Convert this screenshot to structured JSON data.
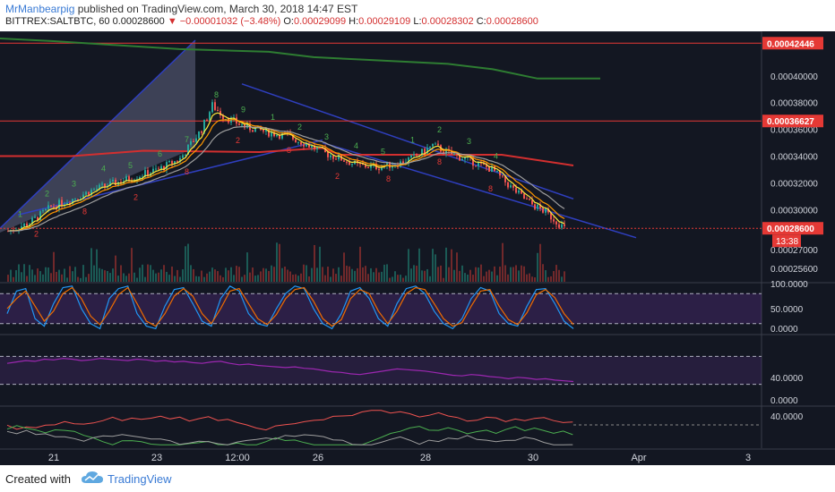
{
  "header": {
    "author": "MrManbearpig",
    "published_text": " published on TradingView.com, March 30, 2018 14:47 EST",
    "symbol": "BITTREX:SALTBTC, 60",
    "last": "0.00028600",
    "change": "▼ −0.00001032 (−3.48%)",
    "o_label": "O:",
    "o": "0.00029099",
    "h_label": "H:",
    "h": "0.00029109",
    "l_label": "L:",
    "l": "0.00028302",
    "c_label": "C:",
    "c": "0.00028600"
  },
  "footer": {
    "created": "Created with",
    "brand": "TradingView"
  },
  "colors": {
    "background": "#131722",
    "up": "#26a69a",
    "down": "#ef5350",
    "ema_fast": "#ffeb3b",
    "ema_mid": "#ff9800",
    "ema_slow": "#9e9e9e",
    "resistance": "#e53935",
    "green_line": "#2e7d32",
    "trend": "#2f3fbf",
    "rsi": "#9c27b0",
    "stoch_k": "#2196f3",
    "stoch_d": "#ef6c00"
  },
  "chart_data": [
    {
      "type": "line",
      "name": "price",
      "x_ticks": [
        "21",
        "23",
        "12:00",
        "26",
        "28",
        "30",
        "Apr",
        "3"
      ],
      "y_ticks": [
        "0.00040000",
        "0.00038000",
        "0.00036000",
        "0.00034000",
        "0.00032000",
        "0.00030000",
        "0.00027000",
        "0.00025600"
      ],
      "y_range": [
        0.000246,
        0.00043
      ],
      "price_labels": [
        {
          "text": "0.00042446",
          "value": 0.00042446
        },
        {
          "text": "0.00036627",
          "value": 0.00036627
        },
        {
          "text": "0.00028600",
          "value": 0.000286
        }
      ],
      "countdown": "13:38",
      "close_path": [
        [
          0,
          0.000284
        ],
        [
          8,
          0.00029
        ],
        [
          16,
          0.000302
        ],
        [
          24,
          0.000308
        ],
        [
          32,
          0.000315
        ],
        [
          40,
          0.00032
        ],
        [
          48,
          0.000325
        ],
        [
          56,
          0.00033
        ],
        [
          64,
          0.000338
        ],
        [
          72,
          0.00036
        ],
        [
          76,
          0.000378
        ],
        [
          80,
          0.00037
        ],
        [
          88,
          0.000362
        ],
        [
          96,
          0.000358
        ],
        [
          104,
          0.000355
        ],
        [
          112,
          0.000348
        ],
        [
          118,
          0.000342
        ],
        [
          124,
          0.000338
        ],
        [
          130,
          0.000333
        ],
        [
          138,
          0.000332
        ],
        [
          146,
          0.000335
        ],
        [
          152,
          0.00034
        ],
        [
          158,
          0.000348
        ],
        [
          164,
          0.000342
        ],
        [
          170,
          0.000338
        ],
        [
          180,
          0.00033
        ],
        [
          188,
          0.000315
        ],
        [
          194,
          0.000305
        ],
        [
          200,
          0.000298
        ],
        [
          207,
          0.000286
        ]
      ],
      "labels": {
        "green_counts": [
          "1",
          "2",
          "3",
          "4",
          "5",
          "6",
          "7",
          "8",
          "9",
          "1",
          "2",
          "3",
          "4",
          "5",
          "1",
          "2",
          "3",
          "4"
        ],
        "red_counts": [
          "2",
          "8",
          "2",
          "8",
          "2",
          "8",
          "2",
          "8",
          "8",
          "8"
        ]
      }
    },
    {
      "type": "line",
      "name": "stochastic",
      "y_ticks": [
        "100.0000",
        "50.0000",
        "0.0000"
      ],
      "y_range": [
        0,
        100
      ],
      "bands": [
        80,
        20
      ],
      "k": [
        40,
        85,
        90,
        30,
        15,
        60,
        92,
        95,
        50,
        20,
        10,
        70,
        90,
        95,
        40,
        15,
        10,
        55,
        88,
        92,
        60,
        25,
        15,
        70,
        95,
        85,
        40,
        20,
        15,
        50,
        80,
        95,
        90,
        50,
        20,
        10,
        40,
        85,
        92,
        70,
        30,
        15,
        60,
        90,
        95,
        80,
        45,
        20,
        10,
        30,
        70,
        92,
        85,
        40,
        20,
        15,
        55,
        88,
        90,
        60,
        25,
        10
      ],
      "d": [
        50,
        70,
        85,
        55,
        25,
        45,
        80,
        92,
        70,
        35,
        18,
        45,
        78,
        92,
        60,
        25,
        15,
        40,
        75,
        90,
        75,
        40,
        20,
        50,
        85,
        90,
        60,
        30,
        18,
        38,
        70,
        88,
        92,
        65,
        30,
        15,
        28,
        70,
        88,
        80,
        45,
        20,
        45,
        80,
        92,
        88,
        60,
        30,
        15,
        22,
        55,
        85,
        88,
        55,
        28,
        18,
        42,
        78,
        88,
        72,
        40,
        18
      ]
    },
    {
      "type": "line",
      "name": "rsi",
      "y_ticks": [
        "40.0000",
        "0.0000"
      ],
      "y_range": [
        0,
        100
      ],
      "bands": [
        70,
        30
      ],
      "values": [
        60,
        62,
        64,
        63,
        66,
        65,
        67,
        66,
        64,
        65,
        67,
        66,
        65,
        64,
        66,
        65,
        63,
        64,
        62,
        63,
        61,
        60,
        62,
        63,
        60,
        58,
        59,
        57,
        56,
        55,
        54,
        55,
        53,
        52,
        50,
        48,
        47,
        45,
        44,
        46,
        48,
        50,
        52,
        51,
        50,
        49,
        47,
        45,
        43,
        42,
        44,
        43,
        41,
        40,
        38,
        40,
        39,
        37,
        38,
        36,
        35,
        34
      ]
    },
    {
      "type": "line",
      "name": "dmi",
      "y_ticks": [
        "40.0000"
      ],
      "y_range": [
        0,
        60
      ]
    }
  ]
}
